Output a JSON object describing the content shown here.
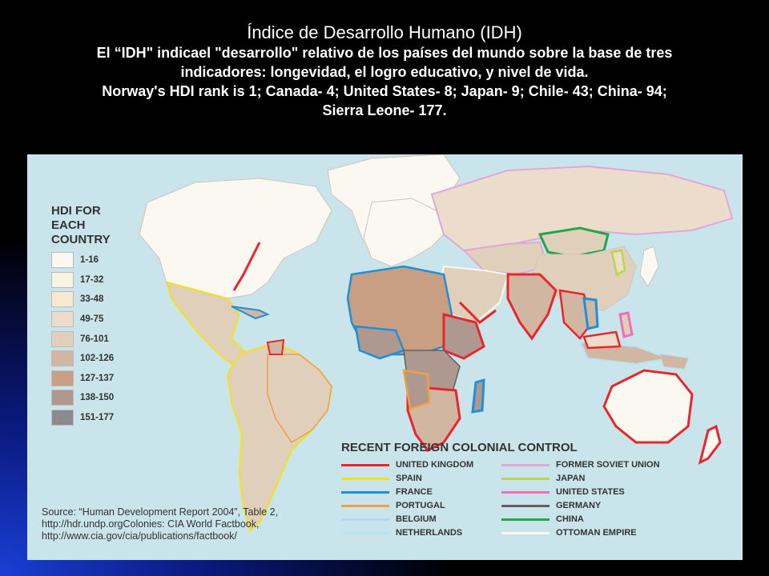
{
  "header": {
    "title": "Índice de Desarrollo Humano (IDH)",
    "line1": "El “IDH\" indicael \"desarrollo\" relativo de los países del mundo sobre la base de tres",
    "line2": "indicadores: longevidad, el logro educativo, y nivel de vida.",
    "line3": "Norway's HDI rank is 1; Canada- 4; United States- 8; Japan- 9; Chile- 43; China- 94;",
    "line4": "Sierra Leone- 177."
  },
  "hdi_legend": {
    "title_l1": "HDI FOR",
    "title_l2": "EACH",
    "title_l3": "COUNTRY",
    "items": [
      {
        "label": "1-16",
        "color": "#fbf8f2"
      },
      {
        "label": "17-32",
        "color": "#fbf3e2"
      },
      {
        "label": "33-48",
        "color": "#f7e8d0"
      },
      {
        "label": "49-75",
        "color": "#ecdccc"
      },
      {
        "label": "76-101",
        "color": "#e0cfbb"
      },
      {
        "label": "102-126",
        "color": "#d1b7a2"
      },
      {
        "label": "127-137",
        "color": "#c99f84"
      },
      {
        "label": "138-150",
        "color": "#ae9890"
      },
      {
        "label": "151-177",
        "color": "#8c8a8e"
      }
    ]
  },
  "colonial_legend": {
    "title": "RECENT FOREIGN COLONIAL CONTROL",
    "items": [
      {
        "label": "UNITED KINGDOM",
        "color": "#e8262b"
      },
      {
        "label": "FORMER SOVIET UNION",
        "color": "#e0a8d8"
      },
      {
        "label": "SPAIN",
        "color": "#f2e21a"
      },
      {
        "label": "JAPAN",
        "color": "#b8d84a"
      },
      {
        "label": "FRANCE",
        "color": "#1f8fd8"
      },
      {
        "label": "UNITED STATES",
        "color": "#f070b8"
      },
      {
        "label": "PORTUGAL",
        "color": "#f0a040"
      },
      {
        "label": "GERMANY",
        "color": "#606060"
      },
      {
        "label": "BELGIUM",
        "color": "#bcd4ea"
      },
      {
        "label": "CHINA",
        "color": "#1fa84a"
      },
      {
        "label": "NETHERLANDS",
        "color": "#b8e4f4"
      },
      {
        "label": "OTTOMAN EMPIRE",
        "color": "#f8f8f0"
      }
    ]
  },
  "source": {
    "line1": "Source: “Human Development Report 2004”, Table 2,",
    "line2": "http://hdr.undp.orgColonies: CIA World Factbook,",
    "line3": "http://www.cia.gov/cia/publications/factbook/"
  }
}
